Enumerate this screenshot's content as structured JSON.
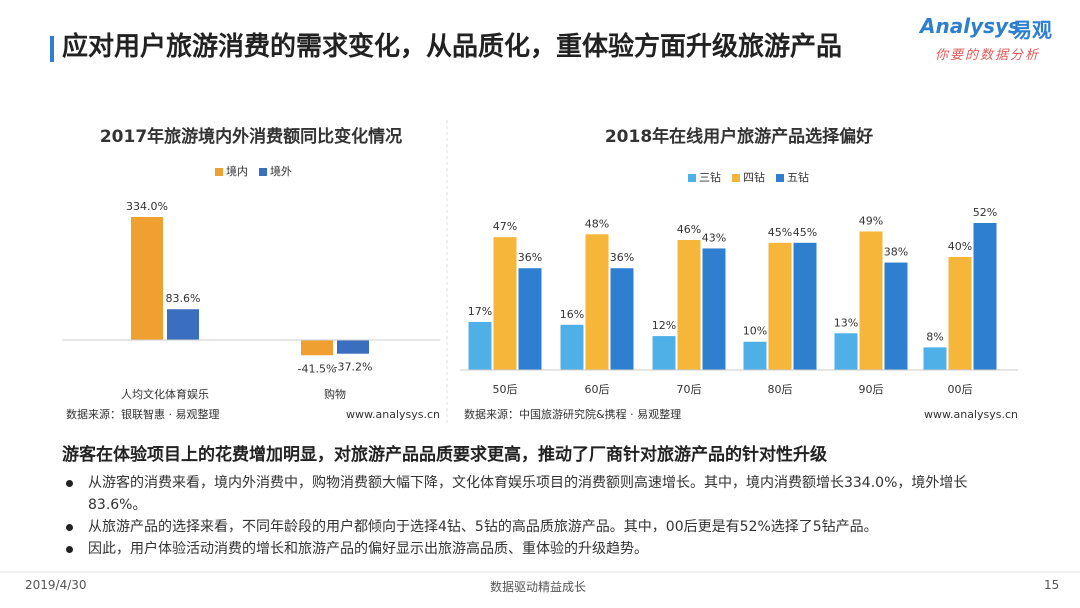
{
  "header": {
    "title": "应对用户旅游消费的需求变化，从品质化，重体验方面升级旅游产品"
  },
  "logo": {
    "brand": "Analysys",
    "name": "易观",
    "slogan": "你要的数据分析"
  },
  "chart_data": [
    {
      "type": "bar",
      "title": "2017年旅游境内外消费额同比变化情况",
      "categories": [
        "人均文化体育娱乐",
        "购物"
      ],
      "series": [
        {
          "name": "境内",
          "color": "#f0a030",
          "values": [
            334.0,
            -41.5
          ],
          "value_labels": [
            "334.0%",
            "-41.5%"
          ]
        },
        {
          "name": "境外",
          "color": "#3a6fc0",
          "values": [
            83.6,
            -37.2
          ],
          "value_labels": [
            "83.6%",
            "-37.2%"
          ]
        }
      ],
      "source": "数据来源：银联智惠 · 易观整理",
      "website": "www.analysys.cn"
    },
    {
      "type": "bar",
      "title": "2018年在线用户旅游产品选择偏好",
      "categories": [
        "50后",
        "60后",
        "70后",
        "80后",
        "90后",
        "00后"
      ],
      "series": [
        {
          "name": "三钻",
          "color": "#4fb0e8",
          "values": [
            17,
            16,
            12,
            10,
            13,
            8
          ],
          "value_labels": [
            "17%",
            "16%",
            "12%",
            "10%",
            "13%",
            "8%"
          ]
        },
        {
          "name": "四钻",
          "color": "#f5b63a",
          "values": [
            47,
            48,
            46,
            45,
            49,
            40
          ],
          "value_labels": [
            "47%",
            "48%",
            "46%",
            "45%",
            "49%",
            "40%"
          ]
        },
        {
          "name": "五钻",
          "color": "#2f7fd0",
          "values": [
            36,
            36,
            43,
            45,
            38,
            52
          ],
          "value_labels": [
            "36%",
            "36%",
            "43%",
            "45%",
            "38%",
            "52%"
          ]
        }
      ],
      "source": "数据来源：中国旅游研究院&携程 · 易观整理",
      "website": "www.analysys.cn"
    }
  ],
  "summary": {
    "heading": "游客在体验项目上的花费增加明显，对旅游产品品质要求更高，推动了厂商针对旅游产品的针对性升级",
    "bullets": [
      "从游客的消费来看，境内外消费中，购物消费额大幅下降，文化体育娱乐项目的消费额则高速增长。其中，境内消费额增长334.0%，境外增长83.6%。",
      "从旅游产品的选择来看，不同年龄段的用户都倾向于选择4钻、5钻的高品质旅游产品。其中，00后更是有52%选择了5钻产品。",
      "因此，用户体验活动消费的增长和旅游产品的偏好显示出旅游高品质、重体验的升级趋势。"
    ]
  },
  "footer": {
    "date": "2019/4/30",
    "slogan": "数据驱动精益成长",
    "page": "15"
  }
}
